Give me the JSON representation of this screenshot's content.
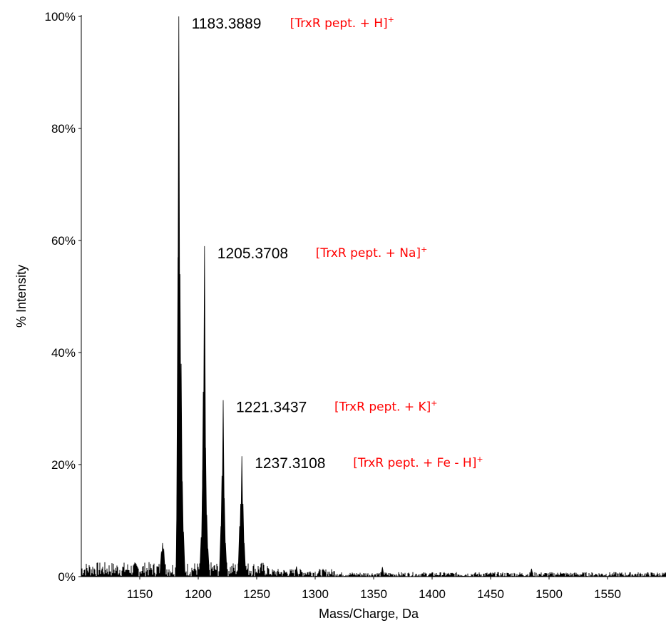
{
  "chart_data": {
    "type": "line",
    "title": "",
    "xlabel": "Mass/Charge, Da",
    "ylabel": "% Intensity",
    "xlim": [
      1100,
      1600
    ],
    "ylim": [
      0,
      100
    ],
    "x_ticks": [
      1150,
      1200,
      1250,
      1300,
      1350,
      1400,
      1450,
      1500,
      1550
    ],
    "y_ticks": [
      0,
      20,
      40,
      60,
      80,
      100
    ],
    "y_tick_labels": [
      "0%",
      "20%",
      "40%",
      "60%",
      "80%",
      "100%"
    ],
    "grid": false,
    "line_color": "#000000",
    "annotation_color": "#ff0000",
    "peaks": [
      {
        "x": 1168.5,
        "y": 4.5
      },
      {
        "x": 1169.5,
        "y": 6
      },
      {
        "x": 1170.5,
        "y": 5
      },
      {
        "x": 1182.3,
        "y": 20
      },
      {
        "x": 1182.7,
        "y": 57
      },
      {
        "x": 1183.3889,
        "y": 100
      },
      {
        "x": 1183.9,
        "y": 27
      },
      {
        "x": 1184.4,
        "y": 54
      },
      {
        "x": 1185.4,
        "y": 38
      },
      {
        "x": 1186.4,
        "y": 17
      },
      {
        "x": 1187.4,
        "y": 8
      },
      {
        "x": 1202.5,
        "y": 7
      },
      {
        "x": 1203.8,
        "y": 19
      },
      {
        "x": 1204.3,
        "y": 33
      },
      {
        "x": 1205.3708,
        "y": 59
      },
      {
        "x": 1206.3,
        "y": 23
      },
      {
        "x": 1207.3,
        "y": 11
      },
      {
        "x": 1208.3,
        "y": 5
      },
      {
        "x": 1219.4,
        "y": 9
      },
      {
        "x": 1220.3,
        "y": 18
      },
      {
        "x": 1221.3437,
        "y": 31.5
      },
      {
        "x": 1222.3,
        "y": 14
      },
      {
        "x": 1223.3,
        "y": 6
      },
      {
        "x": 1235.4,
        "y": 9
      },
      {
        "x": 1236.3,
        "y": 13
      },
      {
        "x": 1237.3108,
        "y": 21.5
      },
      {
        "x": 1238.3,
        "y": 13
      },
      {
        "x": 1239.3,
        "y": 6
      },
      {
        "x": 1284.0,
        "y": 1.8
      },
      {
        "x": 1357.5,
        "y": 1.7
      },
      {
        "x": 1485.0,
        "y": 1.4
      },
      {
        "x": 1510.0,
        "y": 0.7
      }
    ],
    "annotations": [
      {
        "x": 1183.3889,
        "y": 100,
        "mz_label": "1183.3889",
        "ion_label": "[TrxR pept. + H]",
        "ion_sup": "+"
      },
      {
        "x": 1205.3708,
        "y": 59,
        "mz_label": "1205.3708",
        "ion_label": "[TrxR pept. + Na]",
        "ion_sup": "+"
      },
      {
        "x": 1221.3437,
        "y": 31.5,
        "mz_label": "1221.3437",
        "ion_label": "[TrxR pept. + K]",
        "ion_sup": "+"
      },
      {
        "x": 1237.3108,
        "y": 21.5,
        "mz_label": "1237.3108",
        "ion_label": "[TrxR pept. + Fe - H]",
        "ion_sup": "+"
      }
    ]
  }
}
